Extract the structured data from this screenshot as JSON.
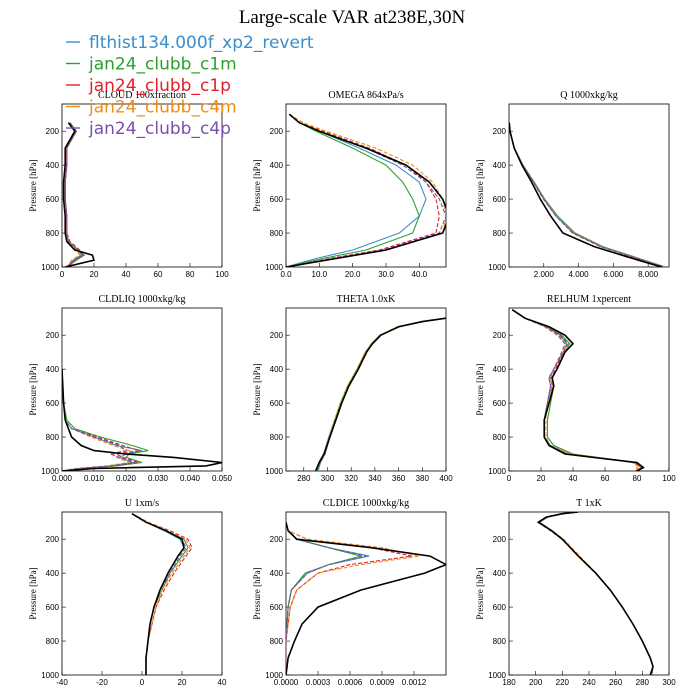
{
  "title": "Large-scale VAR at238E,30N",
  "legend": [
    {
      "name": "flthist134.000f_xp2_revert",
      "color": "#3b8ec8"
    },
    {
      "name": "jan24_clubb_c1m",
      "color": "#2ca02c"
    },
    {
      "name": "jan24_clubb_c1p",
      "color": "#e0202a"
    },
    {
      "name": "jan24_clubb_c4m",
      "color": "#f08c16"
    },
    {
      "name": "jan24_clubb_c4p",
      "color": "#7a4fb0"
    }
  ],
  "ref_color": "#000000",
  "ylabel": "Pressure [hPa]",
  "yticks": [
    200,
    400,
    600,
    800,
    1000
  ],
  "chart_data": [
    {
      "type": "line",
      "title": "CLOUD  100xfraction",
      "ylabel": "Pressure [hPa]",
      "xlim": [
        0,
        100
      ],
      "xticks": [
        0,
        20,
        40,
        60,
        80,
        100
      ],
      "xticklabels": [
        "0",
        "20",
        "40",
        "60",
        "80",
        "100"
      ],
      "ylim": [
        1000,
        40
      ],
      "p": [
        150,
        200,
        300,
        400,
        500,
        600,
        700,
        800,
        850,
        900,
        930,
        960,
        1000
      ],
      "ref": [
        4,
        8,
        2,
        2,
        1,
        1,
        2,
        2,
        3,
        8,
        19,
        20,
        2
      ],
      "series": [
        [
          5,
          9,
          3,
          3,
          2,
          2,
          3,
          3,
          4,
          10,
          12,
          7,
          3
        ],
        [
          5,
          9,
          3,
          3,
          2,
          2,
          3,
          3,
          4,
          10,
          14,
          9,
          3
        ],
        [
          5,
          8,
          3,
          3,
          2,
          2,
          3,
          3,
          5,
          11,
          13,
          8,
          4
        ],
        [
          5,
          9,
          3,
          3,
          2,
          2,
          3,
          3,
          4,
          9,
          11,
          6,
          3
        ],
        [
          5,
          9,
          3,
          3,
          2,
          2,
          3,
          3,
          4,
          10,
          13,
          8,
          3
        ]
      ]
    },
    {
      "type": "line",
      "title": "OMEGA  864xPa/s",
      "ylabel": "Pressure [hPa]",
      "xlim": [
        0,
        48
      ],
      "xticks": [
        0,
        10,
        20,
        30,
        40
      ],
      "xticklabels": [
        "0.0",
        "10.0",
        "20.0",
        "30.0",
        "40.0"
      ],
      "ylim": [
        1000,
        40
      ],
      "p": [
        100,
        150,
        200,
        300,
        400,
        500,
        600,
        700,
        800,
        900,
        950,
        1000
      ],
      "ref": [
        1,
        4,
        10,
        24,
        36,
        43,
        47,
        49,
        47,
        30,
        15,
        0
      ],
      "series": [
        [
          1,
          4,
          10,
          22,
          33,
          40,
          42,
          40,
          34,
          20,
          9,
          0
        ],
        [
          1,
          4,
          9,
          20,
          30,
          35,
          38,
          40,
          38,
          24,
          11,
          0
        ],
        [
          1,
          5,
          11,
          25,
          36,
          42,
          45,
          46,
          45,
          28,
          13,
          0
        ],
        [
          1,
          5,
          12,
          27,
          38,
          44,
          47,
          48,
          47,
          30,
          14,
          0
        ],
        [
          1,
          4,
          10,
          24,
          35,
          42,
          46,
          48,
          46,
          29,
          14,
          0
        ]
      ]
    },
    {
      "type": "line",
      "title": "Q  1000xkg/kg",
      "ylabel": "Pressure [hPa]",
      "xlim": [
        0,
        9200
      ],
      "xticks": [
        2000,
        4000,
        6000,
        8000
      ],
      "xticklabels": [
        "2.000",
        "4.000",
        "6.000",
        "8.000"
      ],
      "ylim": [
        1000,
        40
      ],
      "p": [
        150,
        200,
        300,
        400,
        500,
        600,
        700,
        800,
        880,
        940,
        980,
        1000
      ],
      "ref": [
        20,
        60,
        300,
        750,
        1300,
        1800,
        2400,
        3100,
        4900,
        6800,
        8100,
        8800
      ],
      "series": [
        [
          20,
          60,
          300,
          800,
          1400,
          2000,
          2700,
          3700,
          5300,
          7100,
          8300,
          8900
        ],
        [
          20,
          60,
          300,
          800,
          1450,
          2050,
          2800,
          3800,
          5400,
          7200,
          8400,
          9000
        ],
        [
          20,
          60,
          300,
          780,
          1400,
          1980,
          2700,
          3650,
          5250,
          7050,
          8300,
          8850
        ],
        [
          20,
          60,
          300,
          790,
          1420,
          2020,
          2750,
          3750,
          5350,
          7150,
          8350,
          8950
        ],
        [
          20,
          60,
          300,
          800,
          1420,
          2000,
          2700,
          3700,
          5300,
          7100,
          8300,
          8900
        ]
      ]
    },
    {
      "type": "line",
      "title": "CLDLIQ  1000xkg/kg",
      "ylabel": "Pressure [hPa]",
      "xlim": [
        0,
        0.05
      ],
      "xticks": [
        0,
        0.01,
        0.02,
        0.03,
        0.04,
        0.05
      ],
      "xticklabels": [
        "0.000",
        "0.010",
        "0.020",
        "0.030",
        "0.040",
        "0.050"
      ],
      "ylim": [
        1000,
        40
      ],
      "p": [
        400,
        600,
        700,
        750,
        800,
        850,
        880,
        900,
        920,
        950,
        970,
        985,
        1000
      ],
      "ref": [
        0,
        0.0005,
        0.001,
        0.002,
        0.003,
        0.006,
        0.01,
        0.02,
        0.035,
        0.05,
        0.045,
        0.01,
        0
      ],
      "series": [
        [
          0,
          0.0005,
          0.001,
          0.003,
          0.01,
          0.017,
          0.025,
          0.02,
          0.018,
          0.022,
          0.015,
          0.005,
          0
        ],
        [
          0,
          0.0005,
          0.0015,
          0.004,
          0.012,
          0.022,
          0.027,
          0.021,
          0.02,
          0.025,
          0.017,
          0.006,
          0
        ],
        [
          0,
          0.0005,
          0.001,
          0.003,
          0.011,
          0.019,
          0.024,
          0.017,
          0.019,
          0.024,
          0.016,
          0.005,
          0
        ],
        [
          0,
          0.0005,
          0.001,
          0.003,
          0.009,
          0.016,
          0.021,
          0.016,
          0.017,
          0.021,
          0.014,
          0.004,
          0
        ],
        [
          0,
          0.0005,
          0.001,
          0.003,
          0.01,
          0.018,
          0.02,
          0.015,
          0.018,
          0.023,
          0.015,
          0.005,
          0
        ]
      ]
    },
    {
      "type": "line",
      "title": "THETA  1.0xK",
      "ylabel": "Pressure [hPa]",
      "xlim": [
        265,
        400
      ],
      "xticks": [
        280,
        300,
        320,
        340,
        360,
        380,
        400
      ],
      "xticklabels": [
        "280",
        "300",
        "320",
        "340",
        "360",
        "380",
        "400"
      ],
      "ylim": [
        1000,
        40
      ],
      "p": [
        100,
        120,
        150,
        200,
        250,
        300,
        400,
        500,
        600,
        700,
        800,
        900,
        950,
        1000
      ],
      "ref": [
        400,
        380,
        360,
        345,
        338,
        333,
        326,
        318,
        312,
        307,
        302,
        297,
        293,
        290
      ],
      "series": [
        [
          400,
          380,
          360,
          344,
          337,
          332,
          325,
          317,
          311,
          306,
          301,
          297,
          294,
          291
        ],
        [
          400,
          381,
          361,
          345,
          338,
          332,
          325,
          317,
          311,
          306,
          302,
          298,
          294,
          292
        ],
        [
          400,
          380,
          360,
          345,
          338,
          333,
          326,
          318,
          312,
          307,
          302,
          297,
          293,
          291
        ],
        [
          400,
          380,
          359,
          344,
          337,
          332,
          325,
          317,
          311,
          306,
          301,
          297,
          293,
          291
        ],
        [
          400,
          381,
          360,
          345,
          338,
          333,
          326,
          318,
          312,
          307,
          302,
          298,
          294,
          291
        ]
      ]
    },
    {
      "type": "line",
      "title": "RELHUM  1xpercent",
      "ylabel": "Pressure [hPa]",
      "xlim": [
        0,
        100
      ],
      "xticks": [
        0,
        20,
        40,
        60,
        80,
        100
      ],
      "xticklabels": [
        "0",
        "20",
        "40",
        "60",
        "80",
        "100"
      ],
      "ylim": [
        1000,
        40
      ],
      "p": [
        50,
        100,
        150,
        200,
        250,
        300,
        400,
        450,
        500,
        600,
        700,
        800,
        850,
        900,
        950,
        980,
        1000
      ],
      "ref": [
        2,
        10,
        25,
        35,
        40,
        35,
        30,
        27,
        28,
        25,
        22,
        22,
        25,
        35,
        80,
        84,
        80
      ],
      "series": [
        [
          2,
          10,
          23,
          32,
          36,
          34,
          28,
          25,
          26,
          24,
          22,
          22,
          26,
          38,
          78,
          83,
          79
        ],
        [
          2,
          10,
          24,
          33,
          38,
          35,
          30,
          27,
          28,
          26,
          24,
          24,
          28,
          40,
          79,
          84,
          80
        ],
        [
          2,
          10,
          23,
          32,
          37,
          34,
          29,
          26,
          27,
          24,
          22,
          22,
          25,
          37,
          78,
          83,
          79
        ],
        [
          2,
          10,
          22,
          30,
          35,
          33,
          28,
          26,
          27,
          24,
          23,
          23,
          26,
          38,
          77,
          82,
          78
        ],
        [
          2,
          10,
          23,
          31,
          35,
          33,
          28,
          25,
          26,
          24,
          22,
          22,
          25,
          36,
          79,
          84,
          80
        ]
      ]
    },
    {
      "type": "line",
      "title": "U  1xm/s",
      "ylabel": "Pressure [hPa]",
      "xlim": [
        -40,
        40
      ],
      "xticks": [
        -40,
        -20,
        0,
        20,
        40
      ],
      "xticklabels": [
        "-40",
        "-20",
        "0",
        "20",
        "40"
      ],
      "ylim": [
        1000,
        40
      ],
      "p": [
        50,
        100,
        150,
        200,
        250,
        300,
        400,
        500,
        600,
        700,
        800,
        900,
        1000
      ],
      "ref": [
        -5,
        2,
        12,
        20,
        21,
        18,
        13,
        9,
        6,
        4,
        3,
        2,
        2
      ],
      "series": [
        [
          -5,
          2,
          11,
          19,
          21,
          18,
          13,
          9,
          6,
          4,
          3,
          2,
          2
        ],
        [
          -5,
          2,
          12,
          21,
          23,
          20,
          14,
          10,
          6,
          4,
          3,
          2,
          2
        ],
        [
          -5,
          3,
          14,
          23,
          25,
          22,
          16,
          11,
          7,
          5,
          3,
          2,
          2
        ],
        [
          -5,
          3,
          13,
          22,
          24,
          21,
          15,
          10,
          7,
          5,
          3,
          2,
          2
        ],
        [
          -5,
          2,
          12,
          20,
          22,
          19,
          14,
          9,
          6,
          4,
          3,
          2,
          2
        ]
      ]
    },
    {
      "type": "line",
      "title": "CLDICE  1000xkg/kg",
      "ylabel": "Pressure [hPa]",
      "xlim": [
        0,
        0.0015
      ],
      "xticks": [
        0,
        0.0003,
        0.0006,
        0.0009,
        0.0012
      ],
      "xticklabels": [
        "0.0000",
        "0.0003",
        "0.0006",
        "0.0009",
        "0.0012"
      ],
      "ylim": [
        1000,
        40
      ],
      "p": [
        100,
        150,
        200,
        250,
        300,
        350,
        400,
        500,
        600,
        700,
        800,
        900,
        1000
      ],
      "ref": [
        0,
        2e-05,
        0.0001,
        0.0008,
        0.00135,
        0.0015,
        0.0013,
        0.0007,
        0.0003,
        0.00015,
        8e-05,
        2e-05,
        0
      ],
      "series": [
        [
          0,
          2e-05,
          0.0001,
          0.0004,
          0.00078,
          0.0004,
          0.0002,
          5e-05,
          2e-05,
          1e-05,
          0,
          0,
          0
        ],
        [
          0,
          2e-05,
          0.0001,
          0.0004,
          0.0007,
          0.0004,
          0.00018,
          5e-05,
          2e-05,
          1e-05,
          0,
          0,
          0
        ],
        [
          0,
          2e-05,
          0.0002,
          0.0008,
          0.00118,
          0.0006,
          0.0003,
          0.0001,
          4e-05,
          2e-05,
          0,
          0,
          0
        ],
        [
          0,
          2e-05,
          0.0002,
          0.0009,
          0.00125,
          0.0007,
          0.0003,
          0.0001,
          4e-05,
          2e-05,
          0,
          0,
          0
        ],
        [
          0,
          2e-05,
          0.0001,
          0.0004,
          0.00075,
          0.0004,
          0.0002,
          5e-05,
          2e-05,
          1e-05,
          0,
          0,
          0
        ]
      ]
    },
    {
      "type": "line",
      "title": "T  1xK",
      "ylabel": "Pressure [hPa]",
      "xlim": [
        180,
        300
      ],
      "xticks": [
        180,
        200,
        220,
        240,
        260,
        280,
        300
      ],
      "xticklabels": [
        "180",
        "200",
        "220",
        "240",
        "260",
        "280",
        "300"
      ],
      "ylim": [
        1000,
        40
      ],
      "p": [
        40,
        50,
        70,
        100,
        150,
        200,
        300,
        400,
        500,
        600,
        700,
        800,
        900,
        950,
        1000
      ],
      "ref": [
        232,
        220,
        208,
        202,
        212,
        220,
        232,
        245,
        256,
        265,
        273,
        280,
        286,
        288,
        286
      ],
      "series": [
        [
          232,
          220,
          208,
          202,
          212,
          220,
          232,
          245,
          256,
          265,
          273,
          280,
          286,
          288,
          287
        ],
        [
          232,
          221,
          209,
          203,
          212,
          220,
          232,
          245,
          256,
          265,
          273,
          280,
          286,
          288,
          287
        ],
        [
          232,
          220,
          208,
          202,
          211,
          220,
          232,
          245,
          256,
          265,
          273,
          280,
          286,
          288,
          287
        ],
        [
          232,
          220,
          208,
          202,
          212,
          221,
          233,
          245,
          256,
          265,
          273,
          280,
          286,
          288,
          286
        ],
        [
          232,
          220,
          208,
          202,
          212,
          220,
          232,
          245,
          256,
          265,
          273,
          280,
          286,
          288,
          287
        ]
      ]
    }
  ]
}
